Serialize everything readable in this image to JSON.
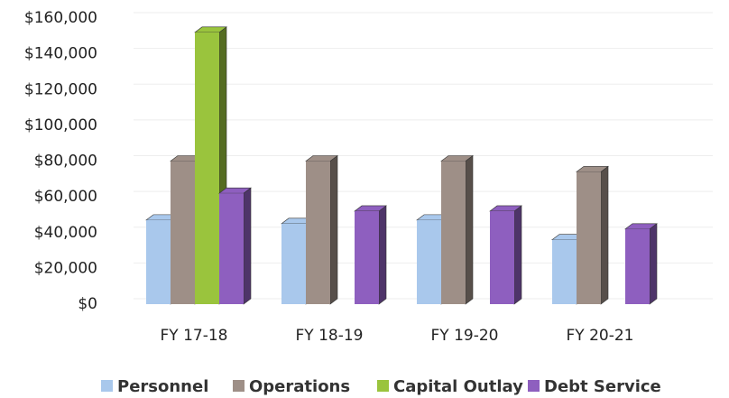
{
  "chart_data": {
    "type": "bar3d",
    "categories": [
      "FY 17-18",
      "FY 18-19",
      "FY 19-20",
      "FY 20-21"
    ],
    "series": [
      {
        "name": "Personnel",
        "color": "#a9c8ec",
        "values": [
          47000,
          45000,
          47000,
          36000
        ]
      },
      {
        "name": "Operations",
        "color": "#9e8f87",
        "values": [
          80000,
          80000,
          80000,
          74000
        ]
      },
      {
        "name": "Capital Outlay",
        "color": "#9ac43d",
        "values": [
          152000,
          0,
          0,
          0
        ]
      },
      {
        "name": "Debt Service",
        "color": "#8e5fbf",
        "values": [
          62000,
          52000,
          52000,
          42000
        ]
      }
    ],
    "ylim": [
      0,
      160000
    ],
    "yticks": [
      {
        "value": 0,
        "label": "$0"
      },
      {
        "value": 20000,
        "label": "$20,000"
      },
      {
        "value": 40000,
        "label": "$40,000"
      },
      {
        "value": 60000,
        "label": "$60,000"
      },
      {
        "value": 80000,
        "label": "$80,000"
      },
      {
        "value": 100000,
        "label": "$100,000"
      },
      {
        "value": 120000,
        "label": "$120,000"
      },
      {
        "value": 140000,
        "label": "$140,000"
      },
      {
        "value": 160000,
        "label": "$160,000"
      }
    ],
    "grid": true
  }
}
